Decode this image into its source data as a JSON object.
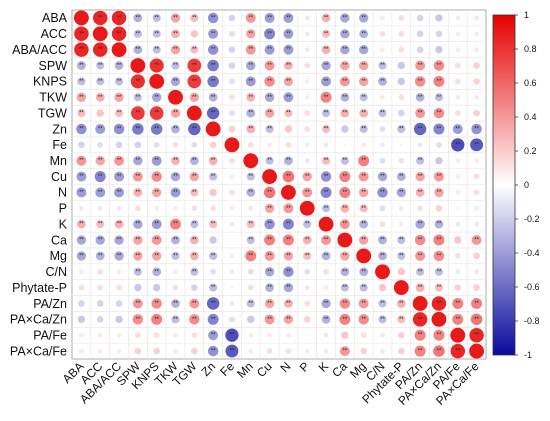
{
  "chart_data": {
    "type": "heatmap",
    "subtype": "correlation-matrix",
    "title": "",
    "variables": [
      "ABA",
      "ACC",
      "ABA/ACC",
      "SPW",
      "KNPS",
      "TKW",
      "TGW",
      "Zn",
      "Fe",
      "Mn",
      "Cu",
      "N",
      "P",
      "K",
      "Ca",
      "Mg",
      "C/N",
      "Phytate-P",
      "PA/Zn",
      "PA×Ca/Zn",
      "PA/Fe",
      "PA×Ca/Fe"
    ],
    "matrix": [
      [
        1.0,
        0.95,
        0.95,
        -0.35,
        -0.3,
        0.4,
        0.3,
        -0.5,
        -0.2,
        0.45,
        -0.45,
        -0.45,
        -0.1,
        0.35,
        -0.4,
        -0.4,
        0.1,
        0.15,
        -0.2,
        -0.25,
        0.1,
        0.1
      ],
      [
        0.95,
        1.0,
        0.95,
        -0.3,
        -0.3,
        0.35,
        0.25,
        -0.45,
        -0.15,
        0.4,
        -0.55,
        -0.45,
        -0.1,
        0.3,
        -0.4,
        -0.35,
        0.15,
        0.15,
        -0.2,
        -0.2,
        0.1,
        0.1
      ],
      [
        0.95,
        0.95,
        1.0,
        -0.35,
        -0.3,
        0.4,
        0.3,
        -0.5,
        -0.2,
        0.45,
        -0.45,
        -0.45,
        -0.1,
        0.35,
        -0.4,
        -0.4,
        0.1,
        0.15,
        -0.2,
        -0.25,
        0.1,
        0.1
      ],
      [
        -0.35,
        -0.3,
        -0.35,
        1.0,
        0.9,
        -0.3,
        0.85,
        -0.6,
        -0.2,
        -0.4,
        0.45,
        0.35,
        0.15,
        -0.4,
        0.4,
        0.4,
        -0.3,
        -0.25,
        0.45,
        0.5,
        0.15,
        0.2
      ],
      [
        -0.3,
        -0.3,
        -0.3,
        0.9,
        1.0,
        -0.4,
        0.85,
        -0.6,
        -0.15,
        -0.45,
        0.5,
        0.4,
        0.1,
        -0.45,
        0.45,
        0.4,
        -0.35,
        -0.25,
        0.5,
        0.55,
        0.15,
        0.2
      ],
      [
        0.4,
        0.35,
        0.4,
        -0.3,
        -0.4,
        1.0,
        0.4,
        -0.35,
        0.15,
        0.35,
        -0.4,
        -0.45,
        0.1,
        0.55,
        -0.35,
        -0.3,
        0.1,
        0.15,
        -0.35,
        -0.3,
        0.1,
        0.1
      ],
      [
        0.3,
        0.25,
        0.3,
        0.85,
        0.85,
        0.4,
        1.0,
        -0.7,
        -0.15,
        -0.35,
        0.4,
        0.3,
        0.15,
        -0.3,
        0.35,
        0.35,
        -0.3,
        -0.2,
        0.45,
        0.5,
        0.15,
        0.2
      ],
      [
        -0.5,
        -0.45,
        -0.5,
        -0.6,
        -0.6,
        -0.35,
        -0.7,
        1.0,
        0.2,
        0.35,
        -0.3,
        0.25,
        0.15,
        0.3,
        -0.25,
        -0.3,
        -0.15,
        -0.3,
        -0.7,
        -0.55,
        -0.45,
        -0.5
      ],
      [
        -0.2,
        -0.15,
        -0.2,
        -0.2,
        -0.15,
        0.15,
        -0.15,
        0.2,
        1.0,
        0.15,
        0.1,
        0.15,
        0.1,
        -0.1,
        0.05,
        0.1,
        -0.1,
        -0.05,
        -0.1,
        -0.15,
        -0.8,
        -0.75
      ],
      [
        0.45,
        0.4,
        0.45,
        -0.4,
        -0.45,
        0.35,
        -0.35,
        0.35,
        0.15,
        1.0,
        -0.3,
        -0.35,
        -0.1,
        0.3,
        -0.3,
        0.55,
        -0.15,
        0.15,
        -0.3,
        -0.25,
        0.1,
        0.1
      ],
      [
        -0.45,
        -0.55,
        -0.45,
        0.45,
        0.5,
        -0.4,
        0.4,
        -0.3,
        0.1,
        -0.3,
        1.0,
        0.6,
        0.4,
        -0.5,
        0.55,
        0.45,
        -0.4,
        -0.35,
        0.4,
        0.45,
        0.1,
        0.15
      ],
      [
        -0.45,
        -0.45,
        -0.45,
        0.35,
        0.4,
        -0.45,
        0.3,
        0.25,
        0.15,
        -0.35,
        0.6,
        1.0,
        0.45,
        -0.55,
        0.55,
        0.4,
        -0.5,
        -0.4,
        0.35,
        0.4,
        0.1,
        0.15
      ],
      [
        -0.1,
        -0.1,
        -0.1,
        0.15,
        0.1,
        0.1,
        0.15,
        0.15,
        0.1,
        -0.1,
        0.4,
        0.45,
        1.0,
        -0.3,
        0.35,
        0.3,
        -0.15,
        -0.1,
        0.15,
        0.2,
        0.05,
        0.1
      ],
      [
        0.35,
        0.3,
        0.35,
        -0.4,
        -0.45,
        0.55,
        -0.3,
        0.3,
        -0.1,
        0.3,
        -0.5,
        -0.55,
        -0.3,
        1.0,
        0.45,
        -0.35,
        0.15,
        0.1,
        -0.4,
        -0.35,
        -0.1,
        -0.1
      ],
      [
        -0.4,
        -0.4,
        -0.4,
        0.4,
        0.45,
        -0.35,
        0.35,
        -0.25,
        0.05,
        -0.3,
        0.55,
        0.55,
        0.35,
        0.45,
        1.0,
        0.4,
        -0.35,
        -0.3,
        0.5,
        0.55,
        0.25,
        0.45
      ],
      [
        -0.4,
        -0.35,
        -0.4,
        0.4,
        0.4,
        -0.3,
        0.35,
        -0.3,
        0.1,
        0.55,
        0.45,
        0.4,
        0.3,
        -0.35,
        0.4,
        1.0,
        -0.35,
        -0.3,
        0.45,
        0.5,
        0.15,
        0.2
      ],
      [
        0.1,
        0.15,
        0.1,
        -0.3,
        -0.35,
        0.1,
        -0.3,
        -0.15,
        -0.1,
        -0.15,
        -0.4,
        -0.5,
        -0.15,
        0.15,
        -0.35,
        -0.35,
        1.0,
        0.25,
        -0.3,
        -0.3,
        -0.1,
        -0.1
      ],
      [
        0.15,
        0.15,
        0.15,
        -0.25,
        -0.25,
        0.15,
        -0.2,
        -0.3,
        -0.05,
        0.15,
        -0.35,
        -0.4,
        -0.1,
        0.1,
        -0.3,
        -0.3,
        0.25,
        1.0,
        0.35,
        0.3,
        0.2,
        0.2
      ],
      [
        -0.2,
        -0.2,
        -0.2,
        0.45,
        0.5,
        -0.35,
        0.45,
        -0.7,
        -0.1,
        -0.3,
        0.4,
        0.35,
        0.15,
        -0.4,
        0.5,
        0.45,
        -0.3,
        0.35,
        1.0,
        0.95,
        0.55,
        0.55
      ],
      [
        -0.25,
        -0.2,
        -0.25,
        0.5,
        0.55,
        -0.3,
        0.5,
        -0.55,
        -0.15,
        -0.25,
        0.45,
        0.4,
        0.2,
        -0.35,
        0.55,
        0.5,
        -0.3,
        0.3,
        0.95,
        1.0,
        0.55,
        0.6
      ],
      [
        0.1,
        0.1,
        0.1,
        0.15,
        0.15,
        0.1,
        0.15,
        -0.45,
        -0.8,
        0.1,
        0.1,
        0.1,
        0.05,
        -0.1,
        0.25,
        0.15,
        -0.1,
        0.2,
        0.55,
        0.55,
        1.0,
        0.95
      ],
      [
        0.1,
        0.1,
        0.1,
        0.2,
        0.2,
        0.1,
        0.2,
        -0.5,
        -0.75,
        0.1,
        0.15,
        0.15,
        0.1,
        -0.1,
        0.45,
        0.2,
        -0.1,
        0.2,
        0.55,
        0.6,
        0.95,
        1.0
      ]
    ],
    "significance_marker": "**",
    "significance_threshold_abs": 0.3,
    "colorbar": {
      "ticks": [
        1,
        0.8,
        0.6,
        0.4,
        0.2,
        0,
        -0.2,
        -0.4,
        -0.6,
        -0.8,
        -1
      ],
      "tick_labels": [
        "1",
        "0.8",
        "0.6",
        "0.4",
        "0.2",
        "0",
        "-0.2",
        "-0.4",
        "-0.6",
        "-0.8",
        "-1"
      ],
      "range": [
        -1,
        1
      ],
      "color_negative": "#0a0a9e",
      "color_zero": "#ffffff",
      "color_positive": "#e60000"
    },
    "grid": true,
    "legend_position": "right"
  }
}
